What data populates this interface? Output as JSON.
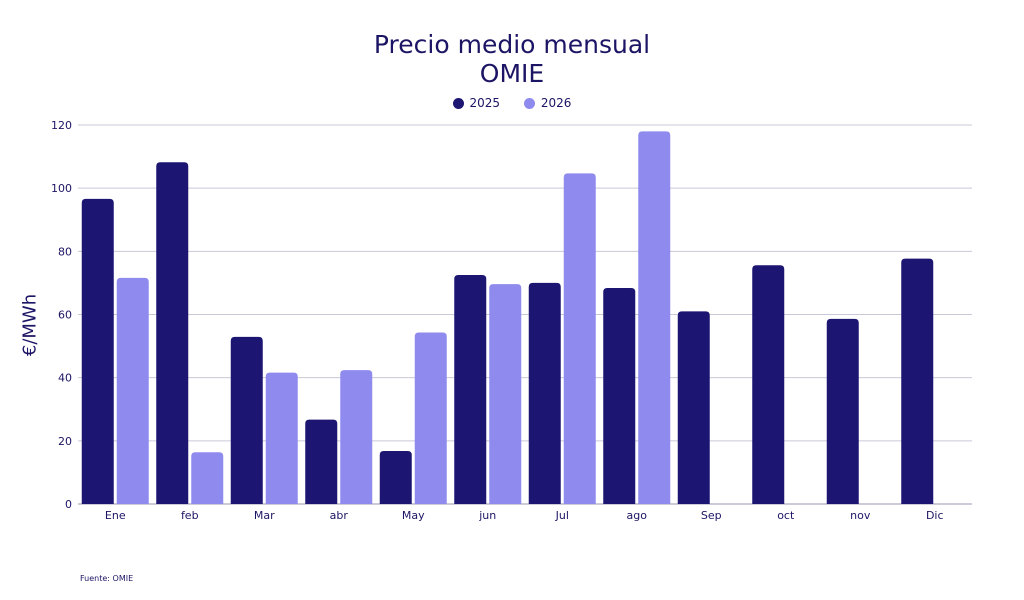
{
  "chart_data": {
    "type": "bar",
    "title_line1": "Precio medio mensual",
    "title_line2": "OMIE",
    "xlabel": "",
    "ylabel": "€/MWh",
    "ylim": [
      0,
      120
    ],
    "yticks": [
      0,
      20,
      40,
      60,
      80,
      100,
      120
    ],
    "grid": true,
    "legend_position": "top-center",
    "categories": [
      "Ene",
      "feb",
      "Mar",
      "abr",
      "May",
      "jun",
      "Jul",
      "ago",
      "Sep",
      "oct",
      "nov",
      "Dic"
    ],
    "series": [
      {
        "name": "2025",
        "color": "#1c1572",
        "values": [
          96.6,
          108.2,
          52.9,
          26.7,
          16.8,
          72.5,
          70.0,
          68.4,
          61.0,
          75.6,
          58.6,
          77.7
        ]
      },
      {
        "name": "2026",
        "color": "#8f8aee",
        "values": [
          71.6,
          16.4,
          41.6,
          42.4,
          54.3,
          69.6,
          104.7,
          118.0,
          null,
          null,
          null,
          null
        ]
      }
    ],
    "source": "Fuente: OMIE"
  }
}
